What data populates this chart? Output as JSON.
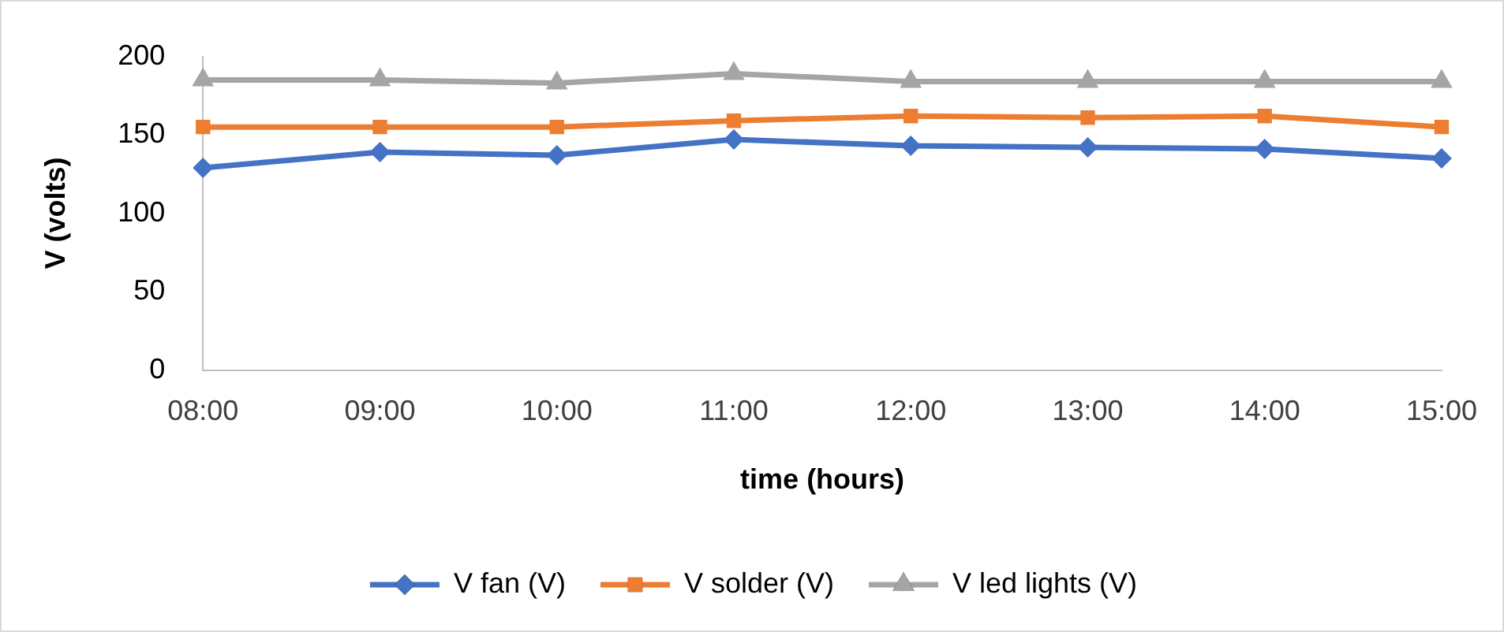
{
  "chart_data": {
    "type": "line",
    "xlabel": "time (hours)",
    "ylabel": "V (volts)",
    "categories": [
      "08:00",
      "09:00",
      "10:00",
      "11:00",
      "12:00",
      "13:00",
      "14:00",
      "15:00"
    ],
    "series": [
      {
        "name": "V fan (V)",
        "color": "#4472c4",
        "marker": "diamond",
        "values": [
          129,
          139,
          137,
          147,
          143,
          142,
          141,
          135
        ]
      },
      {
        "name": "V solder (V)",
        "color": "#ed7d31",
        "marker": "square",
        "values": [
          155,
          155,
          155,
          159,
          162,
          161,
          162,
          155
        ]
      },
      {
        "name": "V led lights (V)",
        "color": "#a5a5a5",
        "marker": "triangle",
        "values": [
          185,
          185,
          183,
          189,
          184,
          184,
          184,
          184
        ]
      }
    ],
    "ylim": [
      0,
      200
    ],
    "yticks": [
      0,
      50,
      100,
      150,
      200
    ],
    "grid": false,
    "legend": "bottom"
  }
}
